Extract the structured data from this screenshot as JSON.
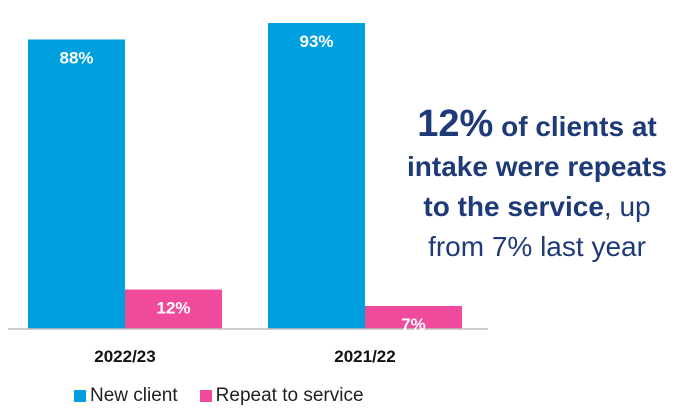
{
  "chart_data": {
    "type": "bar",
    "categories": [
      "2022/23",
      "2021/22"
    ],
    "series": [
      {
        "name": "New client",
        "values": [
          88,
          93
        ],
        "labels": [
          "88%",
          "93%"
        ],
        "color": "#00a0e0"
      },
      {
        "name": "Repeat to service",
        "values": [
          12,
          7
        ],
        "labels": [
          "12%",
          "7%"
        ],
        "color": "#ef4a9b"
      }
    ],
    "ylim": [
      0,
      100
    ],
    "grid": false,
    "legend": "bottom"
  },
  "callout": {
    "pct": "12%",
    "bold_part": " of clients at intake were repeats to the service",
    "rest": ", up from 7% last year"
  }
}
